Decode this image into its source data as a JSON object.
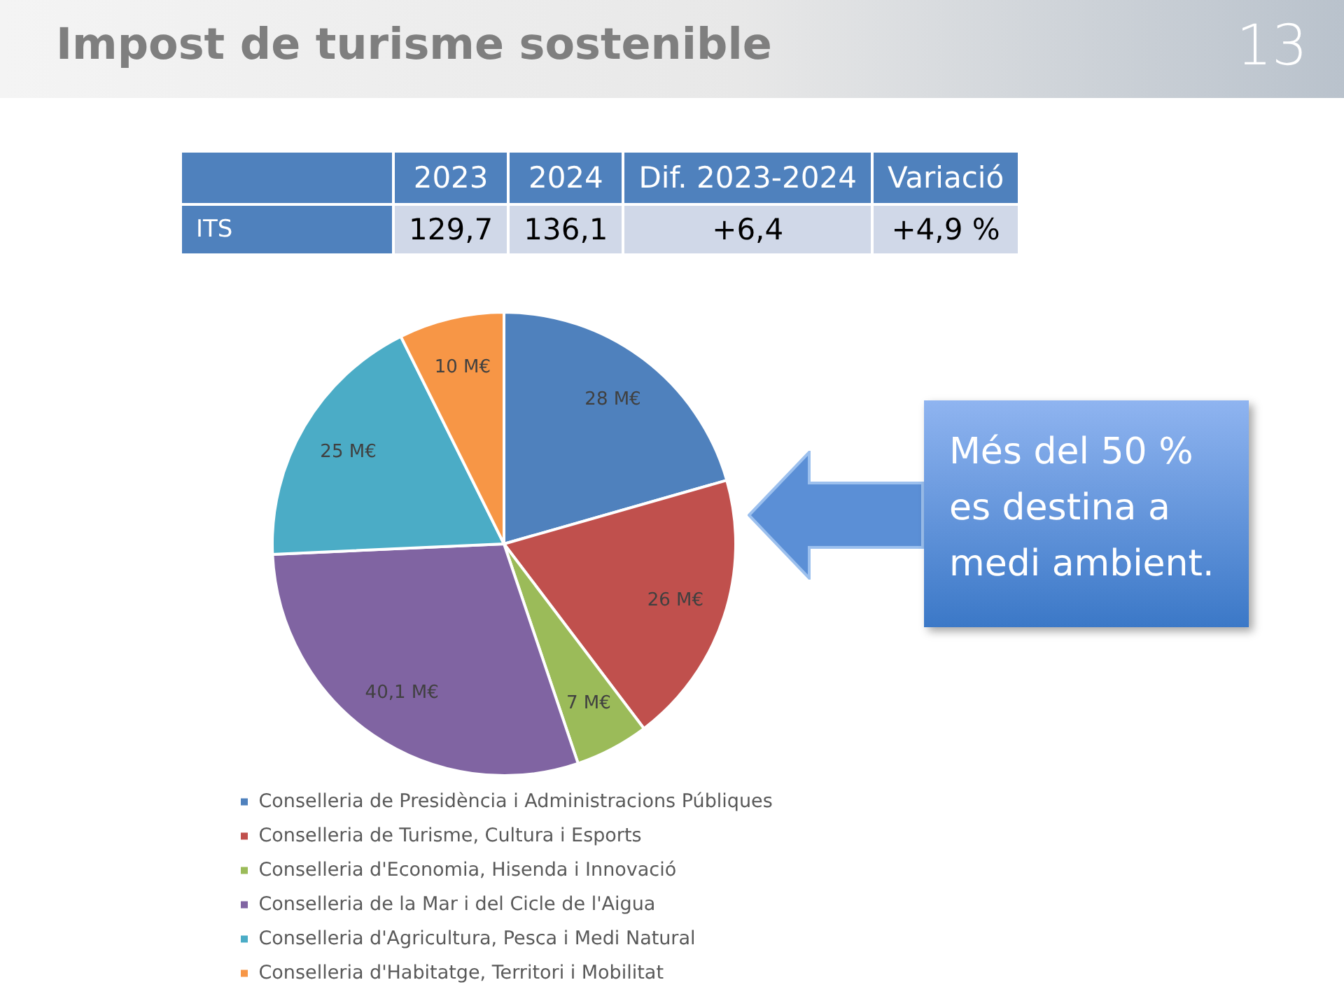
{
  "chart_data": {
    "type": "pie",
    "title": "Impost de turisme sostenible",
    "categories": [
      "Conselleria de Presidència i Administracions Públiques",
      "Conselleria de Turisme, Cultura i Esports",
      "Conselleria d'Economia, Hisenda i Innovació",
      "Conselleria de la Mar i del Cicle de l'Aigua",
      "Conselleria d'Agricultura, Pesca i Medi Natural",
      "Conselleria d'Habitatge, Territori i Mobilitat"
    ],
    "values": [
      28,
      26,
      7,
      40.1,
      25,
      10
    ],
    "value_labels": [
      "28 M€",
      "26 M€",
      "7 M€",
      "40,1 M€",
      "25 M€",
      "10 M€"
    ],
    "colors": [
      "#4f81bd",
      "#c0504d",
      "#9bbb59",
      "#8064a2",
      "#4bacc6",
      "#f79646"
    ],
    "legend": "bottom",
    "annotations": [
      "2023",
      "2024",
      "Dif. 2023-2024",
      "Variació",
      "ITS",
      "129,7",
      "136,1",
      "+6,4",
      "+4,9 %",
      "Més del 50 % es destina a medi ambient.",
      "13"
    ]
  }
}
